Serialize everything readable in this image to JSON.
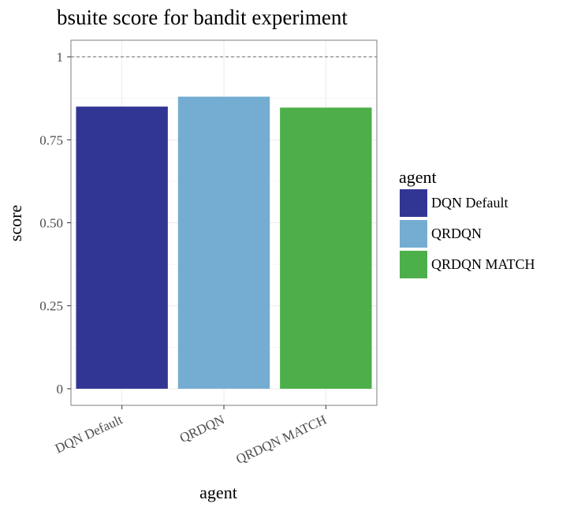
{
  "chart_data": {
    "type": "bar",
    "title": "bsuite score for bandit experiment",
    "xlabel": "agent",
    "ylabel": "score",
    "categories": [
      "DQN Default",
      "QRDQN",
      "QRDQN MATCH"
    ],
    "values": [
      0.85,
      0.88,
      0.847
    ],
    "colors": [
      "#313695",
      "#74add1",
      "#4daf4a"
    ],
    "ylim": [
      -0.05,
      1.05
    ],
    "yticks": [
      0,
      0.25,
      0.5,
      0.75,
      1
    ],
    "ytick_labels": [
      "0",
      "0.25",
      "0.50",
      "0.75",
      "1"
    ],
    "reference_line": {
      "y": 1,
      "style": "dashed"
    },
    "grid": true,
    "legend": {
      "title": "agent",
      "placement": "right",
      "entries": [
        "DQN Default",
        "QRDQN",
        "QRDQN MATCH"
      ]
    }
  }
}
